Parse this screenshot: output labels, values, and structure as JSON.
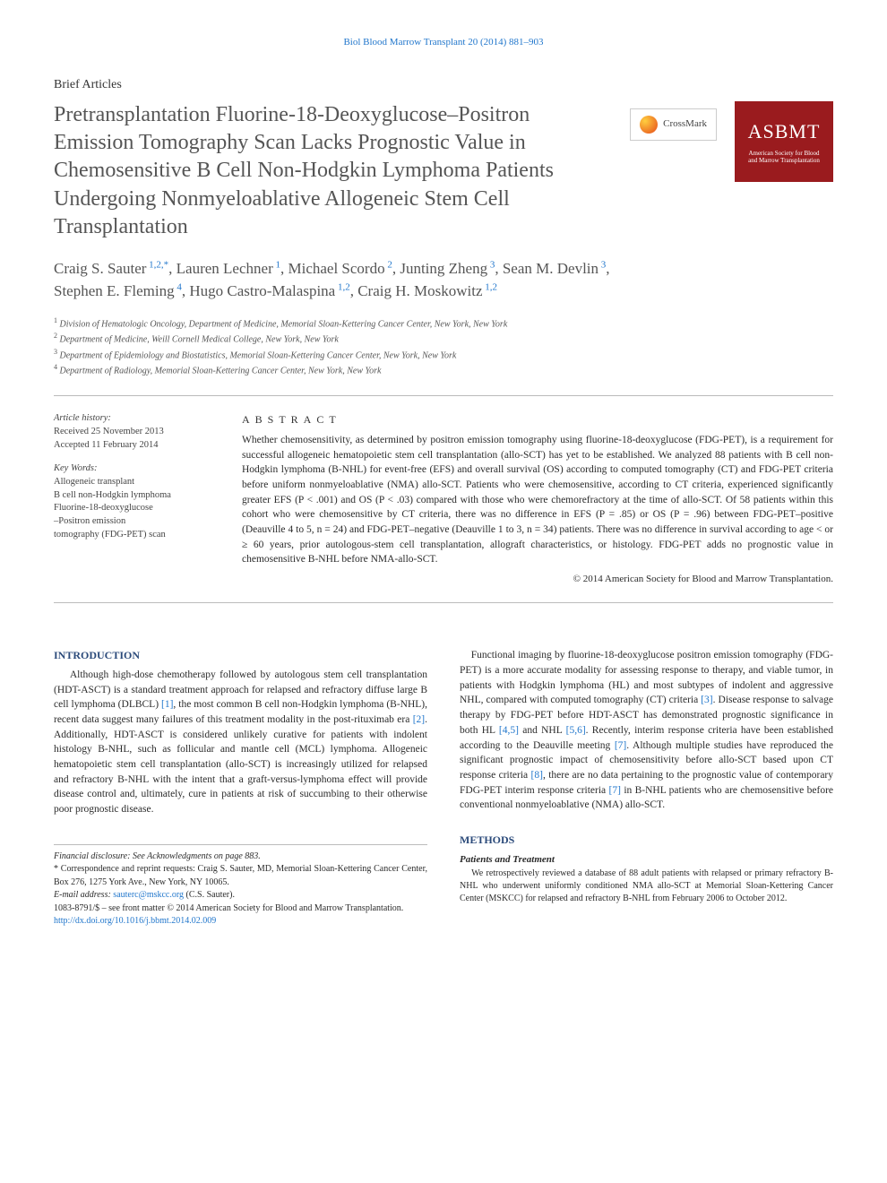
{
  "header_link": "Biol Blood Marrow Transplant 20 (2014) 881–903",
  "article_type": "Brief Articles",
  "title": "Pretransplantation Fluorine-18-Deoxyglucose–Positron Emission Tomography Scan Lacks Prognostic Value in Chemosensitive B Cell Non-Hodgkin Lymphoma Patients Undergoing Nonmyeloablative Allogeneic Stem Cell Transplantation",
  "authors": [
    {
      "name": "Craig S. Sauter",
      "sup": "1,2,*"
    },
    {
      "name": "Lauren Lechner",
      "sup": "1"
    },
    {
      "name": "Michael Scordo",
      "sup": "2"
    },
    {
      "name": "Junting Zheng",
      "sup": "3"
    },
    {
      "name": "Sean M. Devlin",
      "sup": "3"
    },
    {
      "name": "Stephen E. Fleming",
      "sup": "4"
    },
    {
      "name": "Hugo Castro-Malaspina",
      "sup": "1,2"
    },
    {
      "name": "Craig H. Moskowitz",
      "sup": "1,2"
    }
  ],
  "affiliations": [
    {
      "num": "1",
      "text": "Division of Hematologic Oncology, Department of Medicine, Memorial Sloan-Kettering Cancer Center, New York, New York"
    },
    {
      "num": "2",
      "text": "Department of Medicine, Weill Cornell Medical College, New York, New York"
    },
    {
      "num": "3",
      "text": "Department of Epidemiology and Biostatistics, Memorial Sloan-Kettering Cancer Center, New York, New York"
    },
    {
      "num": "4",
      "text": "Department of Radiology, Memorial Sloan-Kettering Cancer Center, New York, New York"
    }
  ],
  "crossmark_label": "CrossMark",
  "asbm": {
    "big": "ASBMT",
    "small1": "American Society for Blood",
    "small2": "and Marrow Transplantation"
  },
  "history": {
    "label": "Article history:",
    "received": "Received 25 November 2013",
    "accepted": "Accepted 11 February 2014"
  },
  "keywords": {
    "label": "Key Words:",
    "items": [
      "Allogeneic transplant",
      "B cell non-Hodgkin lymphoma",
      "Fluorine-18-deoxyglucose",
      "–Positron emission",
      "tomography (FDG-PET) scan"
    ]
  },
  "abstract": {
    "heading": "ABSTRACT",
    "body": "Whether chemosensitivity, as determined by positron emission tomography using fluorine-18-deoxyglucose (FDG-PET), is a requirement for successful allogeneic hematopoietic stem cell transplantation (allo-SCT) has yet to be established. We analyzed 88 patients with B cell non-Hodgkin lymphoma (B-NHL) for event-free (EFS) and overall survival (OS) according to computed tomography (CT) and FDG-PET criteria before uniform nonmyeloablative (NMA) allo-SCT. Patients who were chemosensitive, according to CT criteria, experienced significantly greater EFS (P < .001) and OS (P < .03) compared with those who were chemorefractory at the time of allo-SCT. Of 58 patients within this cohort who were chemosensitive by CT criteria, there was no difference in EFS (P = .85) or OS (P = .96) between FDG-PET–positive (Deauville 4 to 5, n = 24) and FDG-PET–negative (Deauville 1 to 3, n = 34) patients. There was no difference in survival according to age < or ≥ 60 years, prior autologous-stem cell transplantation, allograft characteristics, or histology. FDG-PET adds no prognostic value in chemosensitive B-NHL before NMA-allo-SCT.",
    "copyright": "© 2014 American Society for Blood and Marrow Transplantation."
  },
  "intro": {
    "heading": "INTRODUCTION",
    "para1_a": "Although high-dose chemotherapy followed by autologous stem cell transplantation (HDT-ASCT) is a standard treatment approach for relapsed and refractory diffuse large B cell lymphoma (DLBCL) ",
    "ref1": "[1]",
    "para1_b": ", the most common B cell non-Hodgkin lymphoma (B-NHL), recent data suggest many failures of this treatment modality in the post-rituximab era ",
    "ref2": "[2]",
    "para1_c": ". Additionally, HDT-ASCT is considered unlikely curative for patients with indolent histology B-NHL, such as follicular and mantle cell (MCL) lymphoma. Allogeneic hematopoietic stem cell transplantation (allo-SCT) is increasingly utilized for relapsed and refractory B-NHL with the intent that a graft-versus-lymphoma effect will provide disease control and, ultimately, cure in patients at risk of succumbing to their otherwise poor prognostic disease.",
    "para2_a": "Functional imaging by fluorine-18-deoxyglucose positron emission tomography (FDG-PET) is a more accurate modality for assessing response to therapy, and viable tumor, in patients with Hodgkin lymphoma (HL) and most subtypes of indolent and aggressive NHL, compared with computed tomography (CT) criteria ",
    "ref3": "[3]",
    "para2_b": ". Disease response to salvage therapy by FDG-PET before HDT-ASCT has demonstrated prognostic significance in both HL ",
    "ref45": "[4,5]",
    "para2_c": " and NHL ",
    "ref56": "[5,6]",
    "para2_d": ". Recently, interim response criteria have been established according to the Deauville meeting ",
    "ref7": "[7]",
    "para2_e": ". Although multiple studies have reproduced the significant prognostic impact of chemosensitivity before allo-SCT based upon CT response criteria ",
    "ref8": "[8]",
    "para2_f": ", there are no data pertaining to the prognostic value of contemporary FDG-PET interim response criteria ",
    "ref7b": "[7]",
    "para2_g": " in B-NHL patients who are chemosensitive before conventional nonmyeloablative (NMA) allo-SCT."
  },
  "methods": {
    "heading": "METHODS",
    "subheading": "Patients and Treatment",
    "body": "We retrospectively reviewed a database of 88 adult patients with relapsed or primary refractory B-NHL who underwent uniformly conditioned NMA allo-SCT at Memorial Sloan-Kettering Cancer Center (MSKCC) for relapsed and refractory B-NHL from February 2006 to October 2012."
  },
  "footnotes": {
    "fin": "Financial disclosure: See Acknowledgments on page 883.",
    "corr": "* Correspondence and reprint requests: Craig S. Sauter, MD, Memorial Sloan-Kettering Cancer Center, Box 276, 1275 York Ave., New York, NY 10065.",
    "email_label": "E-mail address: ",
    "email": "sauterc@mskcc.org",
    "email_suffix": " (C.S. Sauter).",
    "issn": "1083-8791/$ – see front matter © 2014 American Society for Blood and Marrow Transplantation.",
    "doi": "http://dx.doi.org/10.1016/j.bbmt.2014.02.009"
  },
  "colors": {
    "link": "#2277cc",
    "heading": "#2b4a7a",
    "asbm": "#9a1b1e"
  }
}
